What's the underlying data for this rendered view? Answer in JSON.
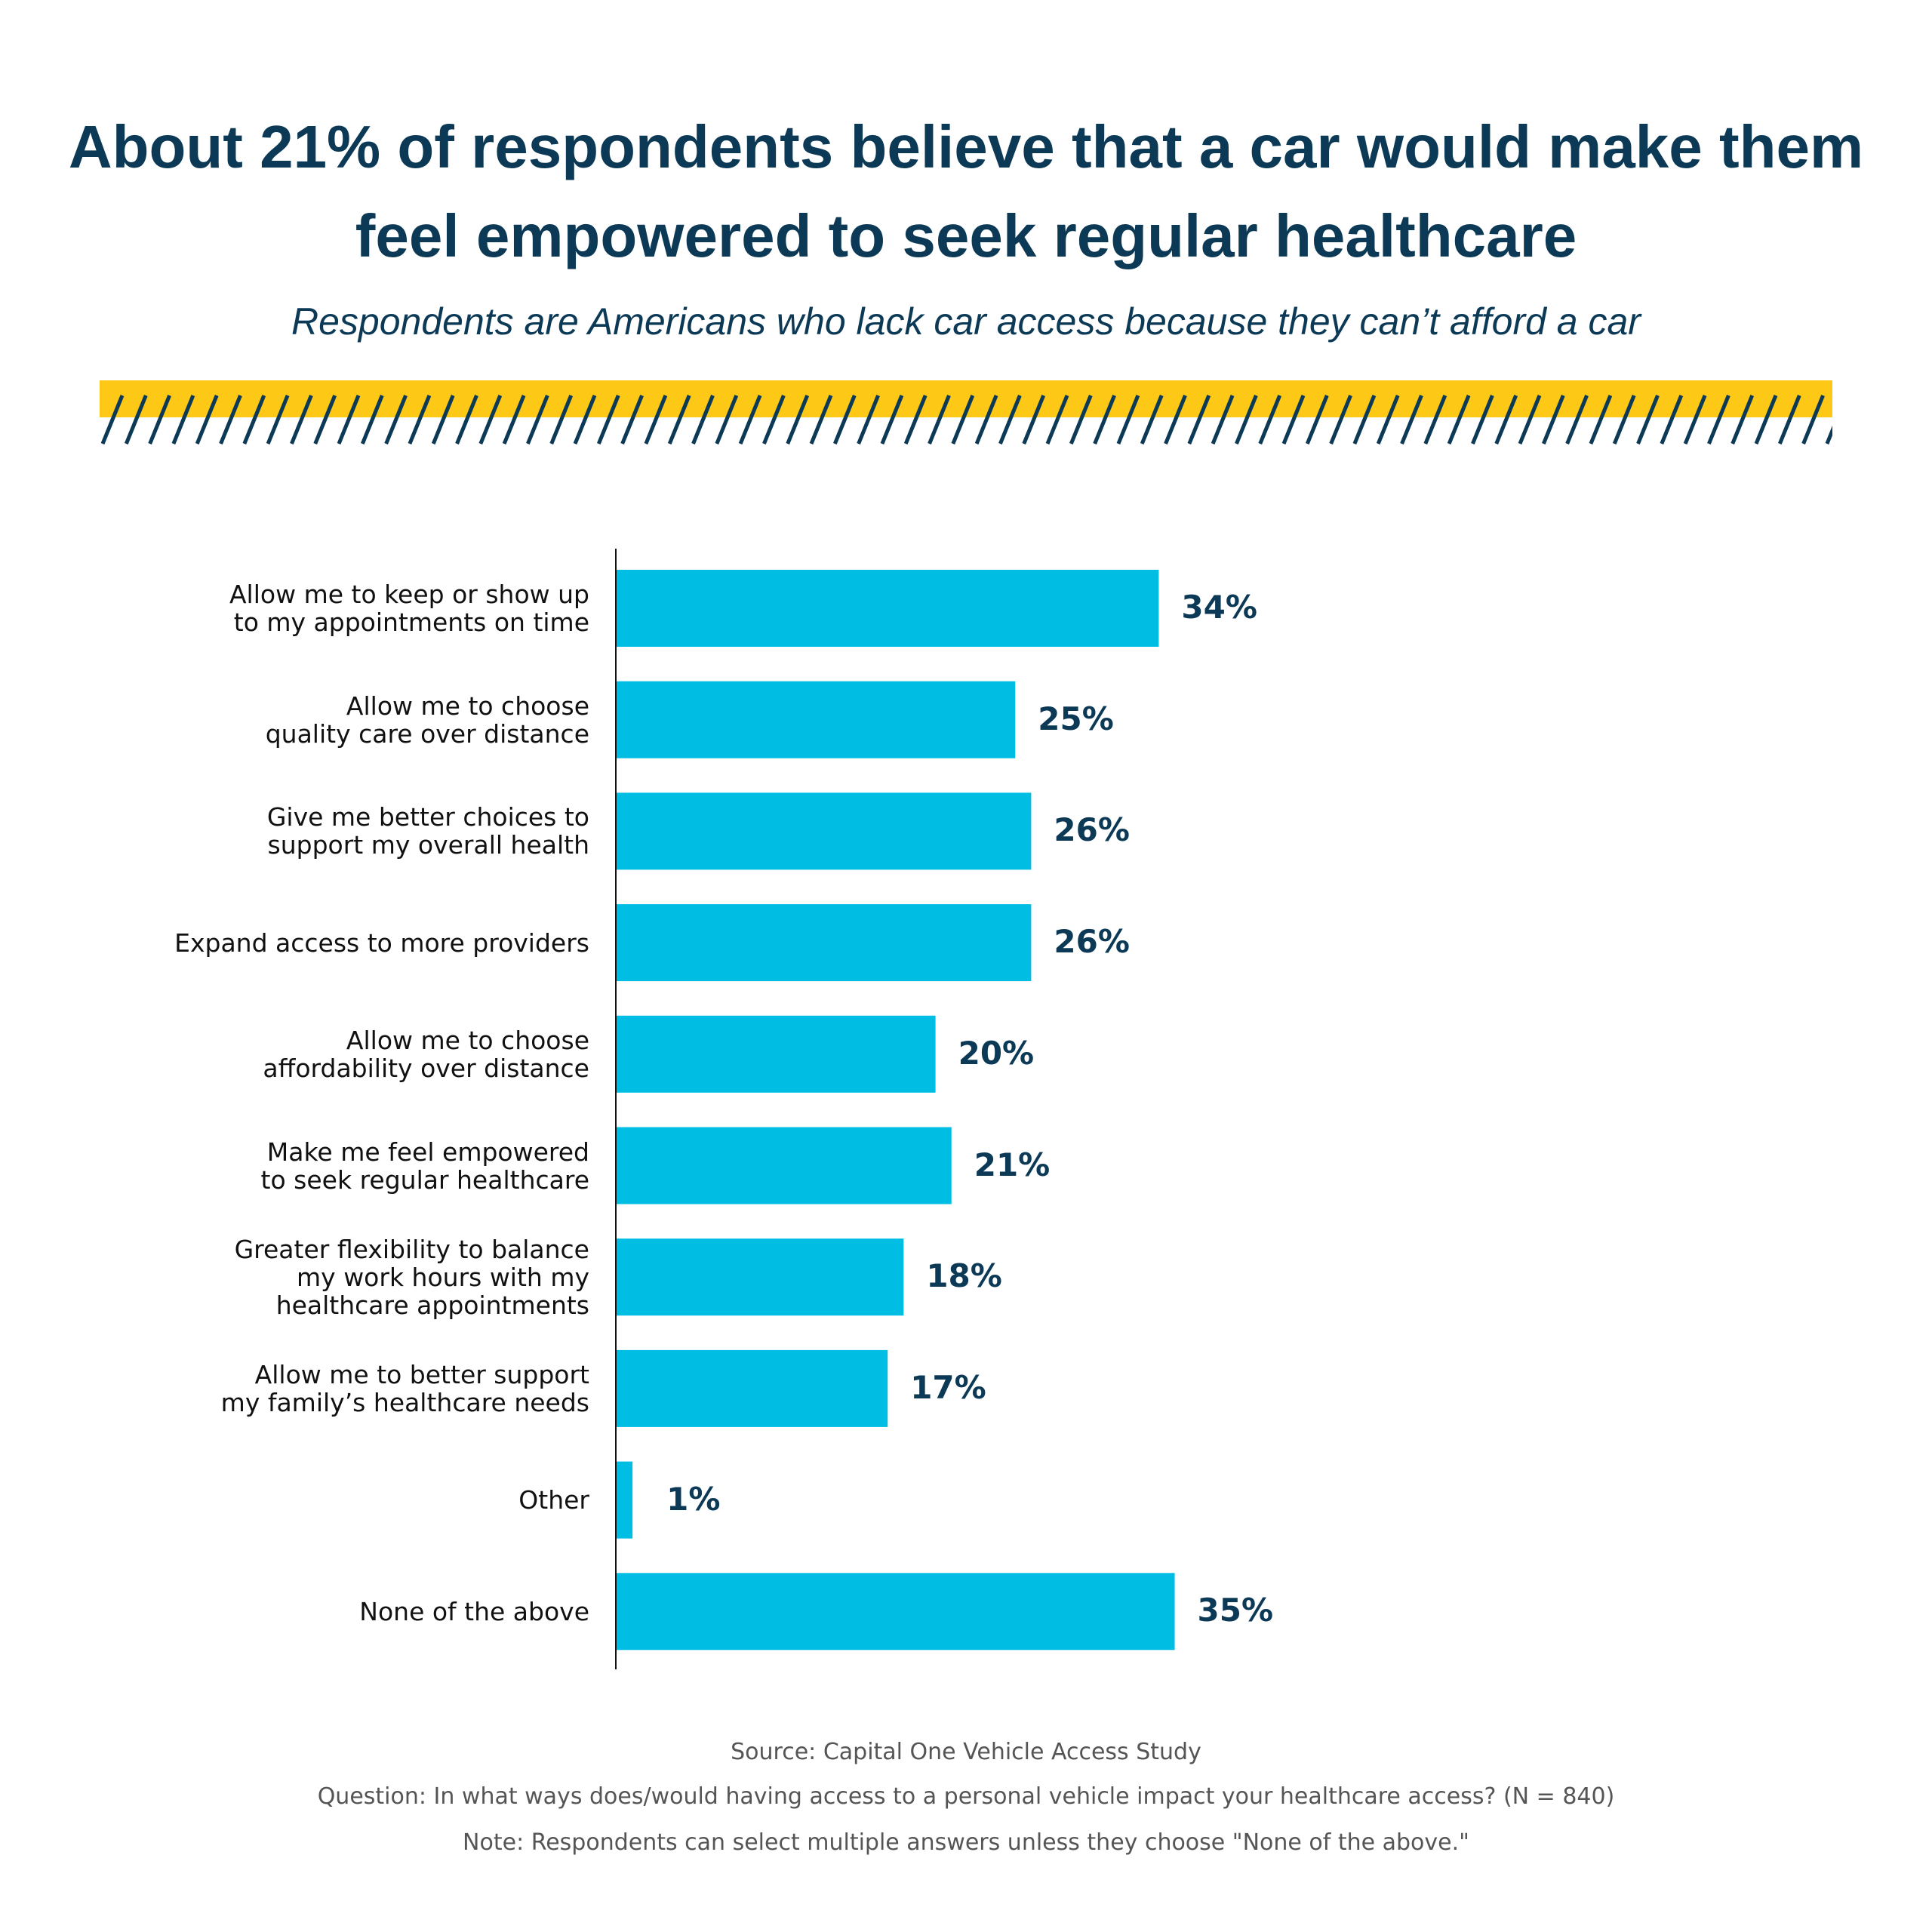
{
  "chart_data": {
    "type": "bar",
    "orientation": "horizontal",
    "title": "About 21% of respondents believe that a car would make them feel empowered to seek regular healthcare",
    "subtitle": "Respondents are Americans who lack car access because they can’t afford a car",
    "categories": [
      "Allow me to keep or show up\nto my appointments on time",
      "Allow me to choose\nquality care over distance",
      "Give me better choices to\nsupport my overall health",
      "Expand access to more providers",
      "Allow me to choose\naffordability over distance",
      "Make me feel empowered\nto seek regular healthcare",
      "Greater flexibility to balance\nmy work hours with my\nhealthcare appointments",
      "Allow me to better support\nmy family’s healthcare needs",
      "Other",
      "None of the above"
    ],
    "values": [
      34,
      25,
      26,
      26,
      20,
      21,
      18,
      17,
      1,
      35
    ],
    "value_labels": [
      "34%",
      "25%",
      "26%",
      "26%",
      "20%",
      "21%",
      "18%",
      "17%",
      "1%",
      "35%"
    ],
    "xlabel": "",
    "ylabel": "",
    "grid": false,
    "colors": {
      "bar": "#00bee3",
      "text": "#0c3a56",
      "accent_band": "#fdc816"
    }
  },
  "footer": {
    "source": "Source: Capital One Vehicle Access Study",
    "question": "Question: In what ways does/would having access to a personal vehicle impact your healthcare access? (N = 840)",
    "note": "Note: Respondents can select multiple answers unless they choose \"None of the above.\""
  }
}
